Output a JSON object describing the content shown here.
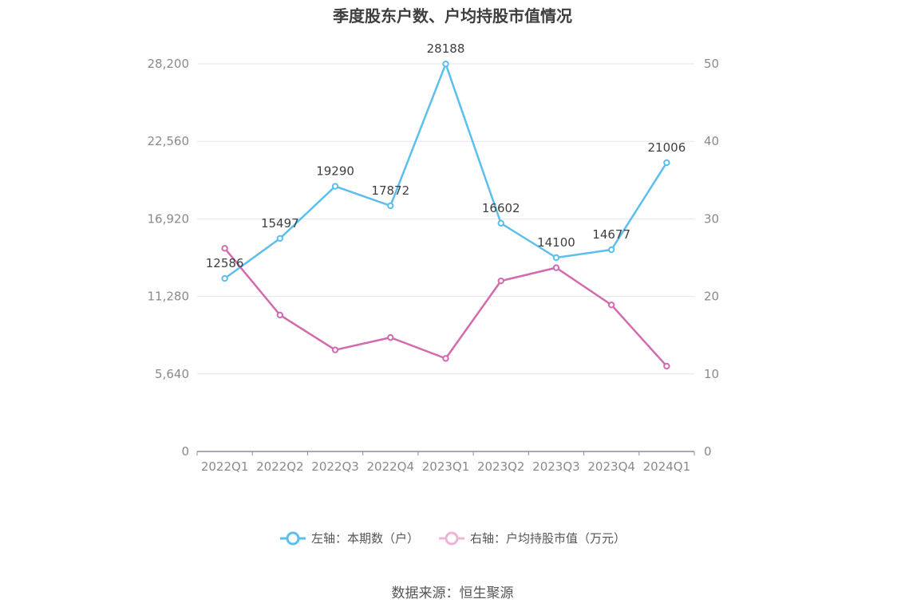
{
  "chart_data": {
    "type": "line",
    "title": "季度股东户数、户均持股市值情况",
    "categories": [
      "2022Q1",
      "2022Q2",
      "2022Q3",
      "2022Q4",
      "2023Q1",
      "2023Q2",
      "2023Q3",
      "2023Q4",
      "2024Q1"
    ],
    "series": [
      {
        "name": "左轴：本期数（户）",
        "axis": "left",
        "color": "#5bbfee",
        "values": [
          12586,
          15497,
          19290,
          17872,
          28188,
          16602,
          14100,
          14677,
          21006
        ],
        "data_labels": [
          "12586",
          "15497",
          "19290",
          "17872",
          "28188",
          "16602",
          "14100",
          "14677",
          "21006"
        ]
      },
      {
        "name": "右轴：户均持股市值（万元）",
        "axis": "right",
        "color": "#d36aae",
        "values": [
          26.2,
          17.6,
          13.1,
          14.7,
          12.0,
          22.0,
          23.7,
          18.9,
          11.0
        ]
      }
    ],
    "y_left": {
      "range": [
        0,
        28200
      ],
      "ticks": [
        "0",
        "5,640",
        "11,280",
        "16,920",
        "22,560",
        "28,200"
      ],
      "tick_values": [
        0,
        5640,
        11280,
        16920,
        22560,
        28200
      ]
    },
    "y_right": {
      "range": [
        0,
        50
      ],
      "ticks": [
        "0",
        "10",
        "20",
        "30",
        "40",
        "50"
      ],
      "tick_values": [
        0,
        10,
        20,
        30,
        40,
        50
      ]
    },
    "grid": true,
    "legend_position": "bottom-center"
  },
  "legend": {
    "left_label": "左轴：本期数（户）",
    "right_label": "右轴：户均持股市值（万元）"
  },
  "source": "数据来源：恒生聚源",
  "colors": {
    "grid": "#e3e6ee",
    "axis": "#8c8c9e",
    "tick_text": "#8a8a8a",
    "label_text": "#3f3f3f"
  }
}
